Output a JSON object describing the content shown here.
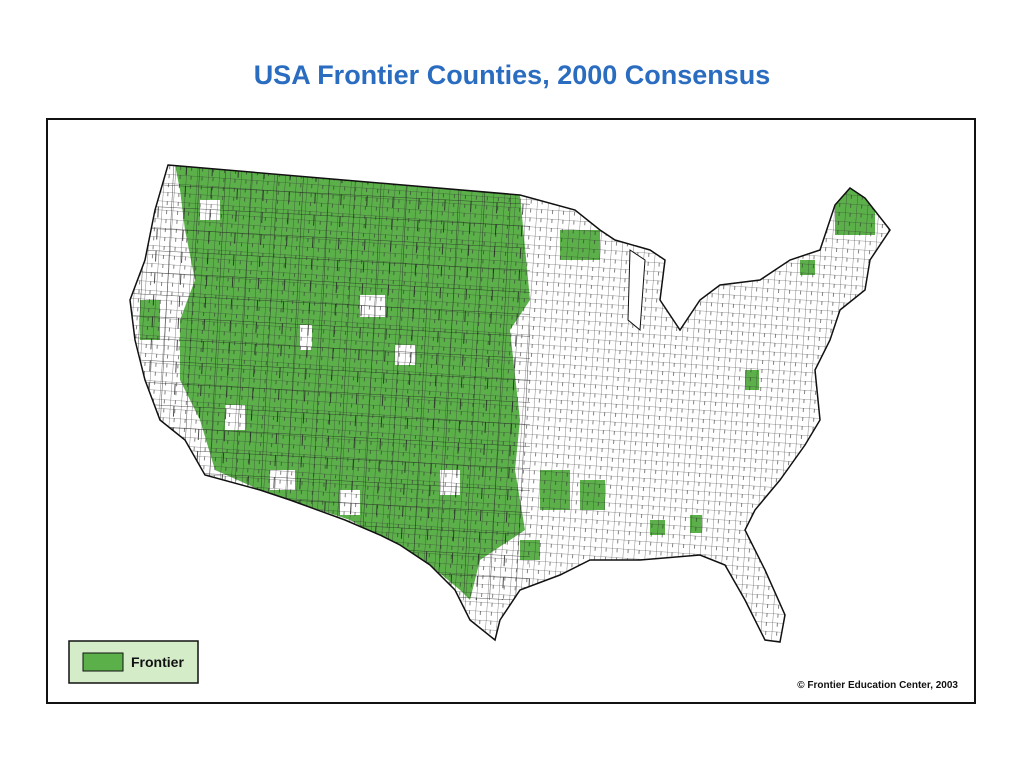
{
  "header": {
    "title": "USA Frontier Counties, 2000 Consensus"
  },
  "legend": {
    "label": "Frontier"
  },
  "footer": {
    "credit": "© Frontier Education Center, 2003"
  }
}
